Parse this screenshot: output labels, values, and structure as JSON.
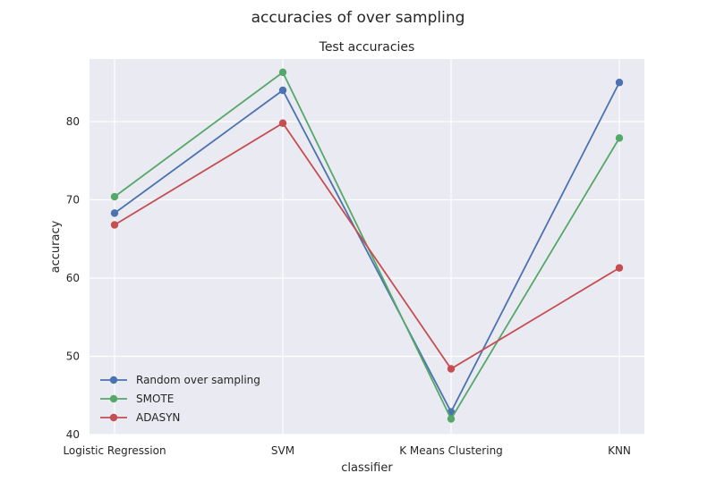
{
  "chart_data": {
    "type": "line",
    "suptitle": "accuracies of over sampling",
    "title": "Test accuracies",
    "xlabel": "classifier",
    "ylabel": "accuracy",
    "categories": [
      "Logistic Regression",
      "SVM",
      "K Means Clustering",
      "KNN"
    ],
    "ylim": [
      40,
      88
    ],
    "yticks": [
      40,
      50,
      60,
      70,
      80
    ],
    "grid": true,
    "legend_position": "lower-left",
    "series": [
      {
        "name": "Random over sampling",
        "color": "#4c72b0",
        "values": [
          68.3,
          84.0,
          42.9,
          85.0
        ]
      },
      {
        "name": "SMOTE",
        "color": "#55a868",
        "values": [
          70.4,
          86.3,
          42.0,
          77.9
        ]
      },
      {
        "name": "ADASYN",
        "color": "#c44e52",
        "values": [
          66.8,
          79.8,
          48.4,
          61.3
        ]
      }
    ]
  }
}
